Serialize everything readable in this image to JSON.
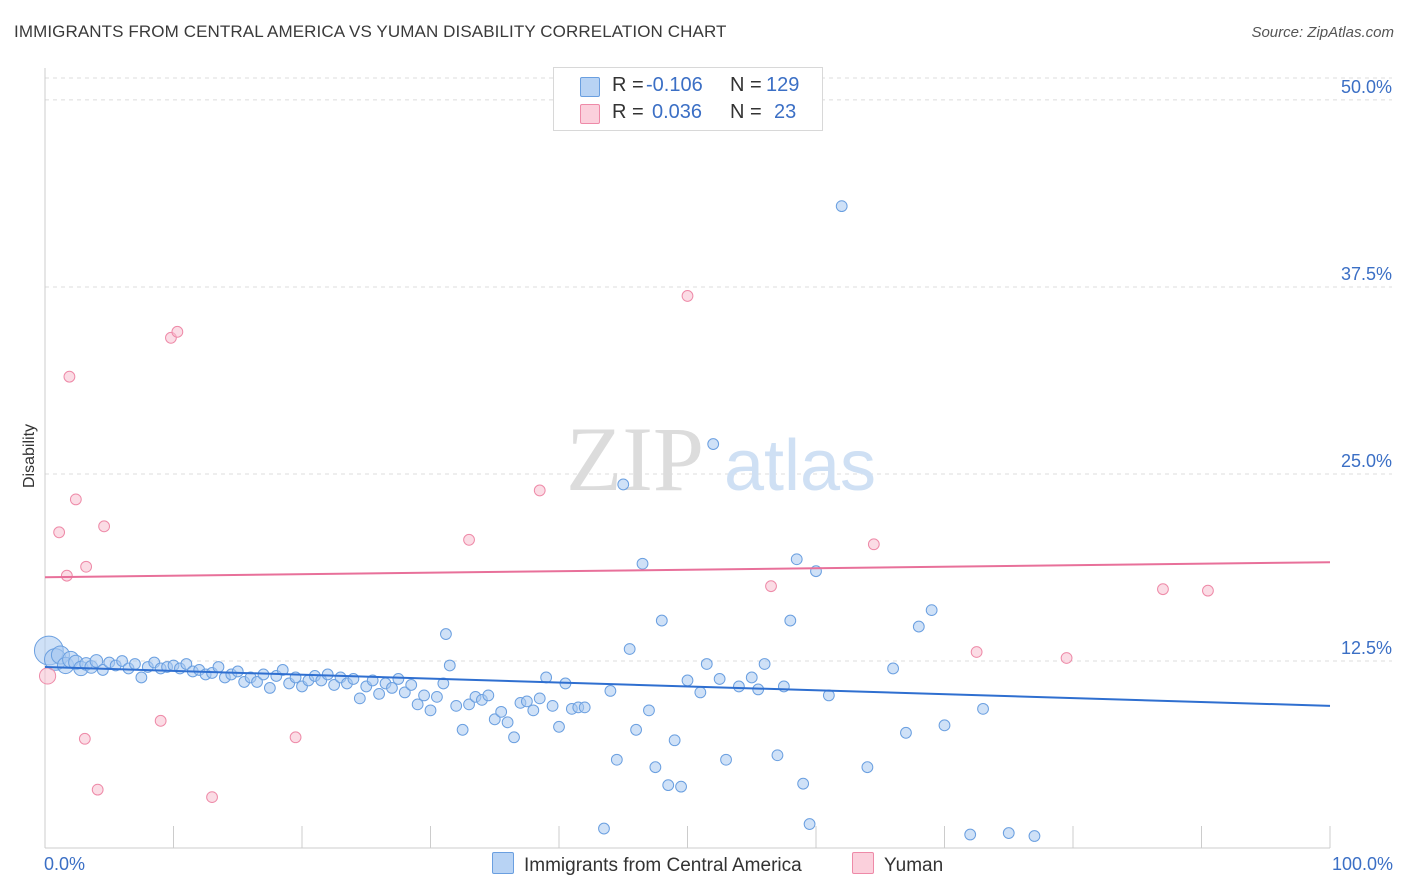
{
  "title": "IMMIGRANTS FROM CENTRAL AMERICA VS YUMAN DISABILITY CORRELATION CHART",
  "source": "Source: ZipAtlas.com",
  "watermark": {
    "zip": "ZIP",
    "atlas": "atlas"
  },
  "legend": {
    "r_label": "R =",
    "n_label": "N =",
    "series1": {
      "r": "-0.106",
      "n": "129"
    },
    "series2": {
      "r": "0.036",
      "n": "23"
    }
  },
  "bottom_legend": {
    "series1": "Immigrants from Central America",
    "series2": "Yuman"
  },
  "colors": {
    "blue_fill": "#a8c8f0",
    "blue_stroke": "#6a9fe0",
    "blue_line": "#2f6fd0",
    "pink_fill": "#f8c0d0",
    "pink_stroke": "#ee8aa8",
    "pink_line": "#e8709a",
    "axis_text": "#3b6fc5"
  },
  "chart_data": {
    "type": "scatter",
    "xlabel": "",
    "ylabel": "Disability",
    "xlim": [
      0,
      100
    ],
    "ylim": [
      0,
      52
    ],
    "x_tick_labels": [
      "0.0%",
      "100.0%"
    ],
    "y_ticks": [
      12.5,
      25.0,
      37.5,
      50.0
    ],
    "y_tick_labels": [
      "12.5%",
      "25.0%",
      "37.5%",
      "50.0%"
    ],
    "grid": "horizontal dashed",
    "series": [
      {
        "name": "Immigrants from Central America",
        "color": "#6a9fe0",
        "trend": {
          "x": [
            0,
            100
          ],
          "y": [
            12.1,
            9.5
          ]
        },
        "points": [
          [
            0.3,
            13.2,
            1.6
          ],
          [
            0.8,
            12.6,
            1.2
          ],
          [
            1.2,
            12.9,
            1.0
          ],
          [
            1.6,
            12.2,
            0.9
          ],
          [
            2.0,
            12.6,
            0.9
          ],
          [
            2.4,
            12.4,
            0.8
          ],
          [
            2.8,
            12.0,
            0.8
          ],
          [
            3.2,
            12.3,
            0.7
          ],
          [
            3.6,
            12.1,
            0.7
          ],
          [
            4.0,
            12.5,
            0.7
          ],
          [
            4.5,
            11.9,
            0.6
          ],
          [
            5.0,
            12.4,
            0.6
          ],
          [
            5.5,
            12.2,
            0.6
          ],
          [
            6.0,
            12.5,
            0.6
          ],
          [
            6.5,
            12.0,
            0.6
          ],
          [
            7.0,
            12.3,
            0.6
          ],
          [
            7.5,
            11.4,
            0.6
          ],
          [
            8.0,
            12.1,
            0.6
          ],
          [
            8.5,
            12.4,
            0.6
          ],
          [
            9.0,
            12.0,
            0.6
          ],
          [
            9.5,
            12.1,
            0.6
          ],
          [
            10.0,
            12.2,
            0.6
          ],
          [
            10.5,
            12.0,
            0.6
          ],
          [
            11.0,
            12.3,
            0.6
          ],
          [
            11.5,
            11.8,
            0.6
          ],
          [
            12.0,
            11.9,
            0.6
          ],
          [
            12.5,
            11.6,
            0.6
          ],
          [
            13.0,
            11.7,
            0.6
          ],
          [
            13.5,
            12.1,
            0.6
          ],
          [
            14.0,
            11.4,
            0.6
          ],
          [
            14.5,
            11.6,
            0.6
          ],
          [
            15.0,
            11.8,
            0.6
          ],
          [
            15.5,
            11.1,
            0.6
          ],
          [
            16.0,
            11.4,
            0.6
          ],
          [
            16.5,
            11.1,
            0.6
          ],
          [
            17.0,
            11.6,
            0.6
          ],
          [
            17.5,
            10.7,
            0.6
          ],
          [
            18.0,
            11.5,
            0.6
          ],
          [
            18.5,
            11.9,
            0.6
          ],
          [
            19.0,
            11.0,
            0.6
          ],
          [
            19.5,
            11.4,
            0.6
          ],
          [
            20.0,
            10.8,
            0.6
          ],
          [
            20.5,
            11.2,
            0.6
          ],
          [
            21.0,
            11.5,
            0.6
          ],
          [
            21.5,
            11.2,
            0.6
          ],
          [
            22.0,
            11.6,
            0.6
          ],
          [
            22.5,
            10.9,
            0.6
          ],
          [
            23.0,
            11.4,
            0.6
          ],
          [
            23.5,
            11.0,
            0.6
          ],
          [
            24.0,
            11.3,
            0.6
          ],
          [
            24.5,
            10.0,
            0.6
          ],
          [
            25.0,
            10.8,
            0.6
          ],
          [
            25.5,
            11.2,
            0.6
          ],
          [
            26.0,
            10.3,
            0.6
          ],
          [
            26.5,
            11.0,
            0.6
          ],
          [
            27.0,
            10.7,
            0.6
          ],
          [
            27.5,
            11.3,
            0.6
          ],
          [
            28.0,
            10.4,
            0.6
          ],
          [
            28.5,
            10.9,
            0.6
          ],
          [
            29.0,
            9.6,
            0.6
          ],
          [
            29.5,
            10.2,
            0.6
          ],
          [
            30.0,
            9.2,
            0.6
          ],
          [
            30.5,
            10.1,
            0.6
          ],
          [
            31.0,
            11.0,
            0.6
          ],
          [
            31.5,
            12.2,
            0.6
          ],
          [
            31.2,
            14.3,
            0.6
          ],
          [
            32.0,
            9.5,
            0.6
          ],
          [
            32.5,
            7.9,
            0.6
          ],
          [
            33.0,
            9.6,
            0.6
          ],
          [
            33.5,
            10.1,
            0.6
          ],
          [
            34.0,
            9.9,
            0.6
          ],
          [
            34.5,
            10.2,
            0.6
          ],
          [
            35.0,
            8.6,
            0.6
          ],
          [
            35.5,
            9.1,
            0.6
          ],
          [
            36.0,
            8.4,
            0.6
          ],
          [
            36.5,
            7.4,
            0.6
          ],
          [
            37.0,
            9.7,
            0.6
          ],
          [
            37.5,
            9.8,
            0.6
          ],
          [
            38.0,
            9.2,
            0.6
          ],
          [
            38.5,
            10.0,
            0.6
          ],
          [
            39.0,
            11.4,
            0.6
          ],
          [
            39.5,
            9.5,
            0.6
          ],
          [
            40.0,
            8.1,
            0.6
          ],
          [
            40.5,
            11.0,
            0.6
          ],
          [
            41.0,
            9.3,
            0.6
          ],
          [
            41.5,
            9.4,
            0.6
          ],
          [
            42.0,
            9.4,
            0.6
          ],
          [
            43.5,
            1.3,
            0.6
          ],
          [
            44.0,
            10.5,
            0.6
          ],
          [
            44.5,
            5.9,
            0.6
          ],
          [
            45.0,
            24.3,
            0.6
          ],
          [
            45.5,
            13.3,
            0.6
          ],
          [
            46.0,
            7.9,
            0.6
          ],
          [
            46.5,
            19.0,
            0.6
          ],
          [
            47.0,
            9.2,
            0.6
          ],
          [
            47.5,
            5.4,
            0.6
          ],
          [
            48.0,
            15.2,
            0.6
          ],
          [
            48.5,
            4.2,
            0.6
          ],
          [
            49.0,
            7.2,
            0.6
          ],
          [
            49.5,
            4.1,
            0.6
          ],
          [
            50.0,
            11.2,
            0.6
          ],
          [
            51.0,
            10.4,
            0.6
          ],
          [
            51.5,
            12.3,
            0.6
          ],
          [
            52.0,
            27.0,
            0.6
          ],
          [
            52.5,
            11.3,
            0.6
          ],
          [
            53.0,
            5.9,
            0.6
          ],
          [
            54.0,
            10.8,
            0.6
          ],
          [
            55.0,
            11.4,
            0.6
          ],
          [
            55.5,
            10.6,
            0.6
          ],
          [
            56.0,
            12.3,
            0.6
          ],
          [
            57.0,
            6.2,
            0.6
          ],
          [
            57.5,
            10.8,
            0.6
          ],
          [
            58.0,
            15.2,
            0.6
          ],
          [
            58.5,
            19.3,
            0.6
          ],
          [
            59.0,
            4.3,
            0.6
          ],
          [
            59.5,
            1.6,
            0.6
          ],
          [
            60.0,
            18.5,
            0.6
          ],
          [
            61.0,
            10.2,
            0.6
          ],
          [
            62.0,
            42.9,
            0.6
          ],
          [
            64.0,
            5.4,
            0.6
          ],
          [
            70.0,
            8.2,
            0.6
          ],
          [
            72.0,
            0.9,
            0.6
          ],
          [
            75.0,
            1.0,
            0.6
          ],
          [
            77.0,
            0.8,
            0.6
          ],
          [
            69.0,
            15.9,
            0.6
          ],
          [
            73.0,
            9.3,
            0.6
          ],
          [
            66.0,
            12.0,
            0.6
          ],
          [
            67.0,
            7.7,
            0.6
          ],
          [
            68.0,
            14.8,
            0.6
          ]
        ]
      },
      {
        "name": "Yuman",
        "color": "#ee8aa8",
        "trend": {
          "x": [
            0,
            100
          ],
          "y": [
            18.1,
            19.1
          ]
        },
        "points": [
          [
            0.2,
            11.5,
            0.9
          ],
          [
            1.1,
            21.1,
            0.6
          ],
          [
            1.7,
            18.2,
            0.6
          ],
          [
            1.9,
            31.5,
            0.6
          ],
          [
            2.4,
            23.3,
            0.6
          ],
          [
            3.1,
            7.3,
            0.6
          ],
          [
            3.2,
            18.8,
            0.6
          ],
          [
            4.1,
            3.9,
            0.6
          ],
          [
            4.6,
            21.5,
            0.6
          ],
          [
            9.0,
            8.5,
            0.6
          ],
          [
            9.8,
            34.1,
            0.6
          ],
          [
            10.3,
            34.5,
            0.6
          ],
          [
            13.0,
            3.4,
            0.6
          ],
          [
            19.5,
            7.4,
            0.6
          ],
          [
            33.0,
            20.6,
            0.6
          ],
          [
            38.5,
            23.9,
            0.6
          ],
          [
            50.0,
            36.9,
            0.6
          ],
          [
            56.5,
            17.5,
            0.6
          ],
          [
            64.5,
            20.3,
            0.6
          ],
          [
            72.5,
            13.1,
            0.6
          ],
          [
            79.5,
            12.7,
            0.6
          ],
          [
            87.0,
            17.3,
            0.6
          ],
          [
            90.5,
            17.2,
            0.6
          ]
        ]
      }
    ]
  }
}
